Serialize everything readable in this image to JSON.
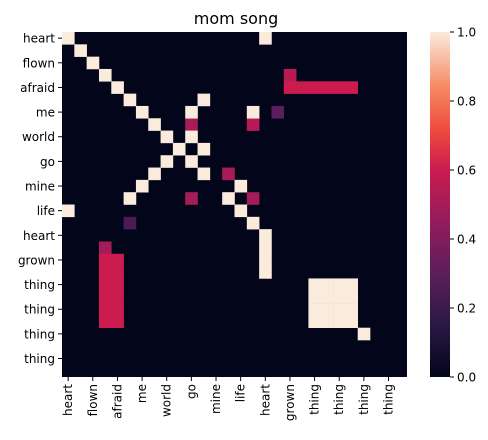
{
  "chart_data": {
    "type": "heatmap",
    "title": "mom song",
    "xlabel": "",
    "ylabel": "",
    "tokens": [
      "heart",
      "flown",
      "afraid",
      "me",
      "world",
      "go",
      "mine",
      "life",
      "heart",
      "grown",
      "thing",
      "thing",
      "thing",
      "thing"
    ],
    "colorbar": {
      "min": 0.0,
      "max": 1.0,
      "ticks": [
        "0.0",
        "0.2",
        "0.4",
        "0.6",
        "0.8",
        "1.0"
      ],
      "colormap": "rocket"
    },
    "cells_high": [
      [
        0,
        0
      ],
      [
        0,
        16
      ],
      [
        1,
        1
      ],
      [
        2,
        2
      ],
      [
        3,
        3
      ],
      [
        4,
        4
      ],
      [
        5,
        5
      ],
      [
        5,
        11
      ],
      [
        6,
        6
      ],
      [
        6,
        10
      ],
      [
        6,
        15
      ],
      [
        7,
        7
      ],
      [
        8,
        8
      ],
      [
        8,
        10
      ],
      [
        9,
        9
      ],
      [
        9,
        11
      ],
      [
        10,
        8
      ],
      [
        10,
        10
      ],
      [
        11,
        7
      ],
      [
        11,
        11
      ],
      [
        12,
        6
      ],
      [
        12,
        14
      ],
      [
        13,
        5
      ],
      [
        13,
        13
      ],
      [
        14,
        0
      ],
      [
        14,
        14
      ],
      [
        15,
        15
      ],
      [
        16,
        16
      ],
      [
        17,
        16
      ],
      [
        18,
        16
      ],
      [
        19,
        16
      ],
      [
        20,
        20
      ],
      [
        20,
        21
      ],
      [
        20,
        22
      ],
      [
        20,
        23
      ],
      [
        21,
        20
      ],
      [
        21,
        21
      ],
      [
        21,
        22
      ],
      [
        21,
        23
      ],
      [
        22,
        20
      ],
      [
        22,
        21
      ],
      [
        22,
        22
      ],
      [
        22,
        23
      ],
      [
        23,
        20
      ],
      [
        23,
        21
      ],
      [
        23,
        22
      ],
      [
        23,
        23
      ],
      [
        24,
        24
      ]
    ],
    "cells_mid": [
      [
        3,
        18,
        0.55
      ],
      [
        4,
        18,
        0.6
      ],
      [
        4,
        19,
        0.6
      ],
      [
        4,
        20,
        0.6
      ],
      [
        4,
        21,
        0.6
      ],
      [
        4,
        22,
        0.6
      ],
      [
        4,
        23,
        0.6
      ],
      [
        6,
        17,
        0.3
      ],
      [
        7,
        10,
        0.5
      ],
      [
        7,
        15,
        0.55
      ],
      [
        11,
        13,
        0.5
      ],
      [
        13,
        10,
        0.5
      ],
      [
        13,
        15,
        0.5
      ],
      [
        15,
        5,
        0.25
      ],
      [
        17,
        3,
        0.5
      ],
      [
        18,
        3,
        0.6
      ],
      [
        18,
        4,
        0.6
      ],
      [
        19,
        3,
        0.6
      ],
      [
        19,
        4,
        0.6
      ],
      [
        20,
        3,
        0.6
      ],
      [
        20,
        4,
        0.6
      ],
      [
        21,
        3,
        0.6
      ],
      [
        21,
        4,
        0.6
      ],
      [
        22,
        3,
        0.6
      ],
      [
        22,
        4,
        0.6
      ],
      [
        23,
        3,
        0.6
      ],
      [
        23,
        4,
        0.6
      ]
    ]
  }
}
